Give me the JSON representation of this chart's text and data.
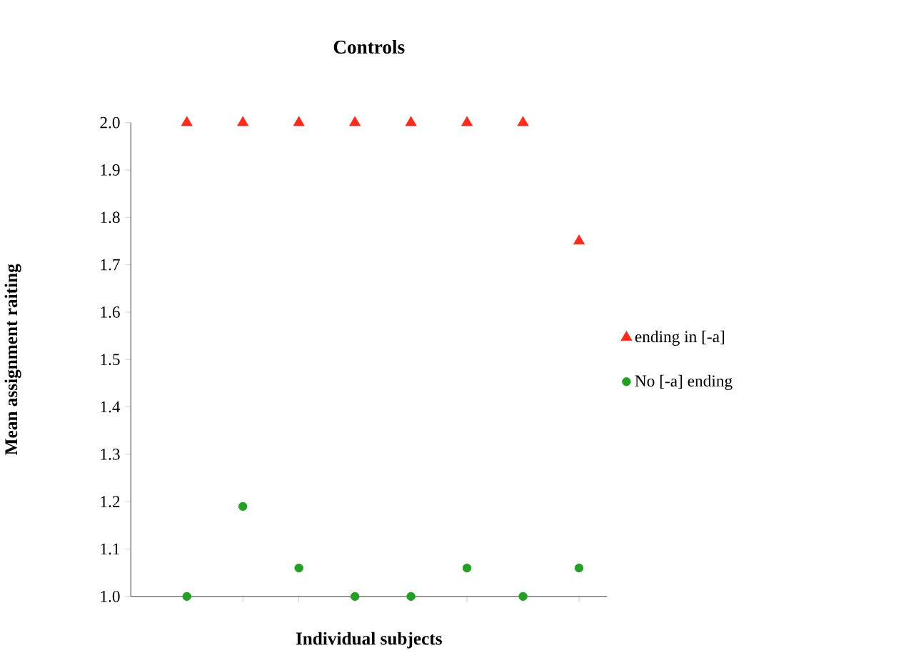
{
  "chart_data": {
    "type": "scatter",
    "title": "Controls",
    "xlabel": "Individual subjects",
    "ylabel": "Mean assignment raiting",
    "categories": [
      null,
      null,
      null,
      null,
      null,
      null,
      null,
      null
    ],
    "series": [
      {
        "name": "ending in [-a]",
        "color": "#ff2a1a",
        "marker": "triangle",
        "values": [
          2.0,
          2.0,
          2.0,
          2.0,
          2.0,
          2.0,
          2.0,
          1.75
        ]
      },
      {
        "name": "No [-a] ending",
        "color": "#22a022",
        "marker": "circle",
        "values": [
          1.0,
          1.19,
          1.06,
          1.0,
          1.0,
          1.06,
          1.0,
          1.06
        ]
      }
    ],
    "ylim": [
      1.0,
      2.0
    ],
    "yticks": [
      {
        "value": 1.0,
        "label": "1.0"
      },
      {
        "value": 1.1,
        "label": "1.1"
      },
      {
        "value": 1.2,
        "label": "1.2"
      },
      {
        "value": 1.3,
        "label": "1.3"
      },
      {
        "value": 1.4,
        "label": "1.4"
      },
      {
        "value": 1.5,
        "label": "1.5"
      },
      {
        "value": 1.6,
        "label": "1.6"
      },
      {
        "value": 1.7,
        "label": "1.7"
      },
      {
        "value": 1.8,
        "label": "1.8"
      },
      {
        "value": 1.9,
        "label": "1.9"
      },
      {
        "value": 2.0,
        "label": "2.0"
      }
    ],
    "tick_labels": "y",
    "legend": "right"
  }
}
